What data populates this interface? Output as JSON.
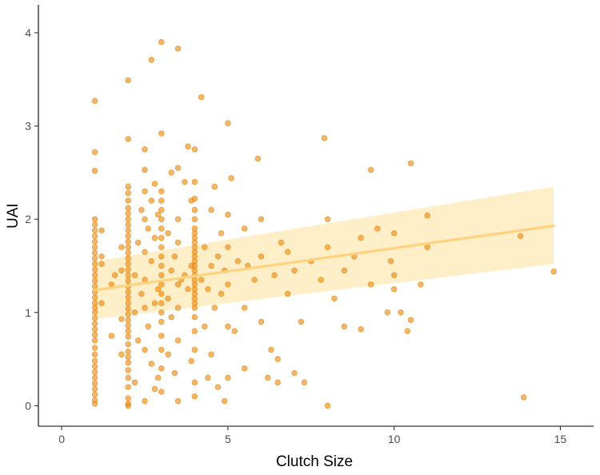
{
  "colors": {
    "points": "#E8890F",
    "trend_line": "#FFD27F",
    "ribbon": "#FFE8B0",
    "background": "#ffffff"
  },
  "chart_data": {
    "type": "scatter",
    "title": "",
    "xlabel": "Clutch Size",
    "ylabel": "UAI",
    "xlim": [
      -0.7,
      16.0
    ],
    "ylim": [
      -0.22,
      4.3
    ],
    "x_ticks": [
      0,
      5,
      10,
      15
    ],
    "y_ticks": [
      0,
      1,
      2,
      3,
      4
    ],
    "grid": false,
    "legend": "none",
    "trend": {
      "x": [
        1.0,
        14.8
      ],
      "y": [
        1.24,
        1.93
      ],
      "ci_lower": [
        0.93,
        1.52
      ],
      "ci_upper": [
        1.55,
        2.35
      ]
    },
    "points": [
      [
        1,
        0.02
      ],
      [
        1,
        0.06
      ],
      [
        1,
        0.12
      ],
      [
        1,
        0.18
      ],
      [
        1,
        0.24
      ],
      [
        1,
        0.3
      ],
      [
        1,
        0.36
      ],
      [
        1,
        0.42
      ],
      [
        1,
        0.48
      ],
      [
        1,
        0.55
      ],
      [
        1,
        0.62
      ],
      [
        1,
        0.7
      ],
      [
        1,
        0.76
      ],
      [
        1,
        0.82
      ],
      [
        1,
        0.88
      ],
      [
        1,
        0.94
      ],
      [
        1,
        1.0
      ],
      [
        1,
        1.05
      ],
      [
        1,
        1.1
      ],
      [
        1,
        1.16
      ],
      [
        1,
        1.22
      ],
      [
        1,
        1.28
      ],
      [
        1,
        1.34
      ],
      [
        1,
        1.4
      ],
      [
        1,
        1.46
      ],
      [
        1,
        1.52
      ],
      [
        1,
        1.58
      ],
      [
        1,
        1.64
      ],
      [
        1,
        1.7
      ],
      [
        1,
        1.76
      ],
      [
        1,
        1.82
      ],
      [
        1,
        1.88
      ],
      [
        1,
        1.94
      ],
      [
        1,
        2.0
      ],
      [
        1,
        2.52
      ],
      [
        1,
        2.72
      ],
      [
        1,
        3.27
      ],
      [
        1.2,
        1.1
      ],
      [
        1.2,
        1.52
      ],
      [
        1.2,
        1.6
      ],
      [
        1.2,
        1.88
      ],
      [
        1.5,
        0.75
      ],
      [
        1.5,
        1.3
      ],
      [
        1.6,
        1.4
      ],
      [
        1.8,
        0.55
      ],
      [
        1.8,
        0.93
      ],
      [
        1.8,
        1.45
      ],
      [
        1.8,
        1.7
      ],
      [
        2,
        0.0
      ],
      [
        2,
        0.02
      ],
      [
        2,
        0.08
      ],
      [
        2,
        0.2
      ],
      [
        2,
        0.3
      ],
      [
        2,
        0.38
      ],
      [
        2,
        0.46
      ],
      [
        2,
        0.52
      ],
      [
        2,
        0.58
      ],
      [
        2,
        0.66
      ],
      [
        2,
        0.74
      ],
      [
        2,
        0.8
      ],
      [
        2,
        0.86
      ],
      [
        2,
        0.92
      ],
      [
        2,
        0.98
      ],
      [
        2,
        1.04
      ],
      [
        2,
        1.1
      ],
      [
        2,
        1.16
      ],
      [
        2,
        1.22
      ],
      [
        2,
        1.28
      ],
      [
        2,
        1.34
      ],
      [
        2,
        1.4
      ],
      [
        2,
        1.46
      ],
      [
        2,
        1.52
      ],
      [
        2,
        1.58
      ],
      [
        2,
        1.64
      ],
      [
        2,
        1.7
      ],
      [
        2,
        1.76
      ],
      [
        2,
        1.82
      ],
      [
        2,
        1.88
      ],
      [
        2,
        1.94
      ],
      [
        2,
        2.0
      ],
      [
        2,
        2.06
      ],
      [
        2,
        2.12
      ],
      [
        2,
        2.2
      ],
      [
        2,
        2.28
      ],
      [
        2,
        2.35
      ],
      [
        2,
        2.86
      ],
      [
        2,
        3.49
      ],
      [
        2.2,
        0.25
      ],
      [
        2.2,
        1.0
      ],
      [
        2.2,
        1.4
      ],
      [
        2.3,
        0.7
      ],
      [
        2.3,
        1.75
      ],
      [
        2.4,
        1.2
      ],
      [
        2.4,
        2.1
      ],
      [
        2.5,
        0.05
      ],
      [
        2.5,
        0.6
      ],
      [
        2.5,
        1.05
      ],
      [
        2.5,
        1.35
      ],
      [
        2.5,
        1.65
      ],
      [
        2.5,
        2.0
      ],
      [
        2.5,
        2.3
      ],
      [
        2.5,
        2.53
      ],
      [
        2.5,
        2.75
      ],
      [
        2.6,
        0.85
      ],
      [
        2.6,
        1.9
      ],
      [
        2.7,
        0.45
      ],
      [
        2.7,
        1.55
      ],
      [
        2.7,
        2.2
      ],
      [
        2.7,
        3.71
      ],
      [
        2.8,
        0.18
      ],
      [
        2.8,
        1.1
      ],
      [
        2.8,
        1.8
      ],
      [
        2.8,
        2.38
      ],
      [
        2.9,
        0.3
      ],
      [
        2.9,
        1.25
      ],
      [
        2.9,
        2.05
      ],
      [
        3,
        0.15
      ],
      [
        3,
        0.4
      ],
      [
        3,
        0.6
      ],
      [
        3,
        0.75
      ],
      [
        3,
        0.9
      ],
      [
        3,
        1.0
      ],
      [
        3,
        1.1
      ],
      [
        3,
        1.2
      ],
      [
        3,
        1.3
      ],
      [
        3,
        1.4
      ],
      [
        3,
        1.5
      ],
      [
        3,
        1.6
      ],
      [
        3,
        1.7
      ],
      [
        3,
        1.8
      ],
      [
        3,
        1.9
      ],
      [
        3,
        2.0
      ],
      [
        3,
        2.1
      ],
      [
        3,
        2.2
      ],
      [
        3,
        2.3
      ],
      [
        3,
        2.92
      ],
      [
        3,
        3.9
      ],
      [
        3.2,
        0.55
      ],
      [
        3.2,
        1.15
      ],
      [
        3.2,
        1.85
      ],
      [
        3.3,
        0.95
      ],
      [
        3.3,
        1.45
      ],
      [
        3.3,
        2.5
      ],
      [
        3.4,
        0.35
      ],
      [
        3.4,
        1.6
      ],
      [
        3.5,
        0.05
      ],
      [
        3.5,
        0.7
      ],
      [
        3.5,
        1.05
      ],
      [
        3.5,
        1.3
      ],
      [
        3.5,
        1.75
      ],
      [
        3.5,
        2.0
      ],
      [
        3.5,
        2.55
      ],
      [
        3.5,
        3.83
      ],
      [
        3.6,
        1.35
      ],
      [
        3.7,
        1.4
      ],
      [
        3.7,
        2.4
      ],
      [
        3.8,
        1.25
      ],
      [
        3.8,
        2.78
      ],
      [
        3.9,
        0.48
      ],
      [
        3.9,
        1.5
      ],
      [
        3.9,
        2.2
      ],
      [
        4,
        0.1
      ],
      [
        4,
        0.25
      ],
      [
        4,
        0.6
      ],
      [
        4,
        0.8
      ],
      [
        4,
        0.95
      ],
      [
        4,
        1.05
      ],
      [
        4,
        1.1
      ],
      [
        4,
        1.15
      ],
      [
        4,
        1.2
      ],
      [
        4,
        1.25
      ],
      [
        4,
        1.3
      ],
      [
        4,
        1.35
      ],
      [
        4,
        1.4
      ],
      [
        4,
        1.45
      ],
      [
        4,
        1.5
      ],
      [
        4,
        1.55
      ],
      [
        4,
        1.6
      ],
      [
        4,
        1.65
      ],
      [
        4,
        1.7
      ],
      [
        4,
        1.75
      ],
      [
        4,
        1.8
      ],
      [
        4,
        1.85
      ],
      [
        4,
        1.9
      ],
      [
        4,
        2.0
      ],
      [
        4,
        2.1
      ],
      [
        4,
        2.22
      ],
      [
        4,
        2.4
      ],
      [
        4,
        2.75
      ],
      [
        4.2,
        1.35
      ],
      [
        4.2,
        3.31
      ],
      [
        4.3,
        0.85
      ],
      [
        4.3,
        1.7
      ],
      [
        4.4,
        0.3
      ],
      [
        4.4,
        1.25
      ],
      [
        4.5,
        0.55
      ],
      [
        4.5,
        1.5
      ],
      [
        4.5,
        2.1
      ],
      [
        4.6,
        1.05
      ],
      [
        4.6,
        2.35
      ],
      [
        4.7,
        0.2
      ],
      [
        4.7,
        1.6
      ],
      [
        4.8,
        1.2
      ],
      [
        4.8,
        1.85
      ],
      [
        4.9,
        0.05
      ],
      [
        4.9,
        1.45
      ],
      [
        5,
        0.3
      ],
      [
        5,
        0.85
      ],
      [
        5,
        1.3
      ],
      [
        5,
        1.7
      ],
      [
        5,
        2.05
      ],
      [
        5,
        3.03
      ],
      [
        5.1,
        2.44
      ],
      [
        5.2,
        0.8
      ],
      [
        5.3,
        1.55
      ],
      [
        5.5,
        0.4
      ],
      [
        5.5,
        1.05
      ],
      [
        5.5,
        1.9
      ],
      [
        5.6,
        1.5
      ],
      [
        5.8,
        1.35
      ],
      [
        5.9,
        2.65
      ],
      [
        6,
        0.9
      ],
      [
        6,
        1.6
      ],
      [
        6,
        2.0
      ],
      [
        6.2,
        0.3
      ],
      [
        6.3,
        0.6
      ],
      [
        6.4,
        1.4
      ],
      [
        6.5,
        0.25
      ],
      [
        6.5,
        0.5
      ],
      [
        6.6,
        1.75
      ],
      [
        6.8,
        1.2
      ],
      [
        6.8,
        1.65
      ],
      [
        7,
        0.35
      ],
      [
        7,
        1.45
      ],
      [
        7.2,
        0.9
      ],
      [
        7.3,
        0.25
      ],
      [
        7.5,
        1.55
      ],
      [
        7.8,
        1.35
      ],
      [
        7.9,
        2.87
      ],
      [
        8,
        0.0
      ],
      [
        8,
        1.7
      ],
      [
        8,
        2.0
      ],
      [
        8.2,
        1.15
      ],
      [
        8.5,
        0.85
      ],
      [
        8.5,
        1.45
      ],
      [
        8.8,
        1.6
      ],
      [
        9,
        0.82
      ],
      [
        9,
        1.8
      ],
      [
        9.3,
        1.3
      ],
      [
        9.3,
        2.53
      ],
      [
        9.5,
        1.9
      ],
      [
        9.8,
        1.0
      ],
      [
        9.9,
        1.55
      ],
      [
        10,
        1.25
      ],
      [
        10,
        1.4
      ],
      [
        10,
        1.85
      ],
      [
        10.2,
        1.0
      ],
      [
        10.4,
        0.8
      ],
      [
        10.5,
        0.92
      ],
      [
        10.5,
        2.6
      ],
      [
        10.8,
        1.3
      ],
      [
        11,
        1.7
      ],
      [
        11,
        2.04
      ],
      [
        13.8,
        1.82
      ],
      [
        13.9,
        0.09
      ],
      [
        14.8,
        1.44
      ]
    ]
  }
}
